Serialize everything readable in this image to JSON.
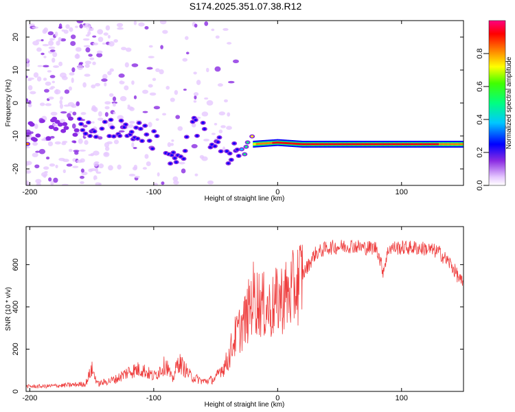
{
  "title": "S174.2025.351.07.38.R12",
  "colors": {
    "snr_line": "#ee3b3b",
    "frame": "#000000"
  },
  "chart_data": [
    {
      "type": "heatmap",
      "name": "spectrogram",
      "xlabel": "Height of straight line (km)",
      "ylabel": "Frequency (Hz)",
      "xlim": [
        -203,
        150
      ],
      "ylim": [
        -25,
        25
      ],
      "xticks": [
        -200,
        -100,
        0,
        100
      ],
      "yticks": [
        -20,
        -10,
        0,
        10,
        20
      ],
      "colorbar": {
        "label": "Normalized spectral amplitude",
        "range": [
          0,
          1
        ],
        "ticks": [
          "0.0",
          "0.2",
          "0.4",
          "0.6",
          "0.8"
        ],
        "tick_values": [
          0.0,
          0.2,
          0.4,
          0.6,
          0.8
        ]
      },
      "carrier_track": [
        {
          "h": -200,
          "f": -8.5,
          "a": 0.15
        },
        {
          "h": -160,
          "f": -7.0,
          "a": 0.25
        },
        {
          "h": -130,
          "f": -8.0,
          "a": 0.3
        },
        {
          "h": -110,
          "f": -9.0,
          "a": 0.3
        },
        {
          "h": -90,
          "f": -14.0,
          "a": 0.28
        },
        {
          "h": -80,
          "f": -19.0,
          "a": 0.3
        },
        {
          "h": -70,
          "f": -7.0,
          "a": 0.3
        },
        {
          "h": -60,
          "f": -9.0,
          "a": 0.35
        },
        {
          "h": -50,
          "f": -12.0,
          "a": 0.35
        },
        {
          "h": -40,
          "f": -16.0,
          "a": 0.3
        },
        {
          "h": -30,
          "f": -13.0,
          "a": 0.35
        },
        {
          "h": -20,
          "f": -12.5,
          "a": 0.8
        },
        {
          "h": 0,
          "f": -12.0,
          "a": 0.95
        },
        {
          "h": 20,
          "f": -12.5,
          "a": 0.95
        },
        {
          "h": 100,
          "f": -12.5,
          "a": 0.95
        },
        {
          "h": 150,
          "f": -12.5,
          "a": 0.9
        }
      ]
    },
    {
      "type": "line",
      "name": "snr",
      "xlabel": "Height of straight line (km)",
      "ylabel": "SNR (10 * v/v)",
      "xlim": [
        -203,
        150
      ],
      "ylim": [
        0,
        780
      ],
      "xticks": [
        -200,
        -100,
        0,
        100
      ],
      "yticks": [
        0,
        200,
        400,
        600
      ],
      "series": [
        {
          "name": "SNR",
          "x": [
            -203,
            -190,
            -170,
            -155,
            -150,
            -145,
            -130,
            -120,
            -110,
            -100,
            -90,
            -85,
            -80,
            -70,
            -60,
            -50,
            -40,
            -35,
            -30,
            -25,
            -20,
            -15,
            -10,
            -5,
            0,
            5,
            10,
            15,
            20,
            25,
            30,
            40,
            50,
            60,
            70,
            80,
            85,
            90,
            100,
            110,
            120,
            130,
            140,
            150
          ],
          "y": [
            20,
            20,
            25,
            30,
            90,
            30,
            50,
            80,
            90,
            60,
            110,
            45,
            120,
            60,
            40,
            50,
            150,
            250,
            300,
            350,
            450,
            420,
            400,
            390,
            430,
            450,
            460,
            500,
            550,
            600,
            650,
            680,
            685,
            690,
            680,
            680,
            570,
            680,
            680,
            680,
            675,
            660,
            600,
            500
          ]
        }
      ]
    }
  ]
}
